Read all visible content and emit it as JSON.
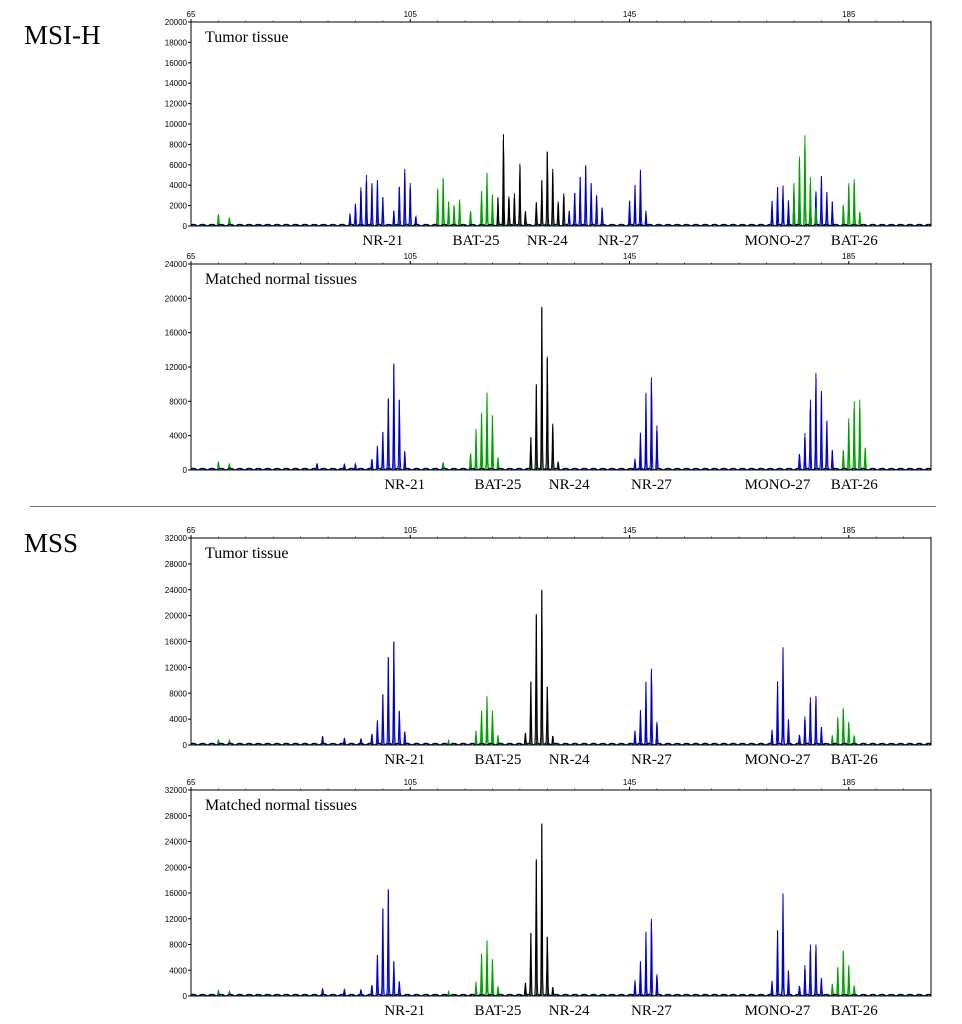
{
  "sections": [
    {
      "label": "MSI-H"
    },
    {
      "label": "MSS"
    }
  ],
  "colors": {
    "blue": "#0000cc",
    "green": "#00a000",
    "black": "#000000"
  },
  "chart_data": [
    {
      "type": "line",
      "title": "Tumor tissue",
      "section": "MSI-H",
      "x_ticks": [
        65,
        105,
        145,
        185
      ],
      "xlim": [
        65,
        200
      ],
      "ylim": [
        0,
        20000
      ],
      "y_ticks": [
        0,
        2000,
        4000,
        6000,
        8000,
        10000,
        12000,
        14000,
        16000,
        18000,
        20000
      ],
      "markers": [
        {
          "label": "NR-21",
          "size": 100
        },
        {
          "label": "BAT-25",
          "size": 117
        },
        {
          "label": "NR-24",
          "size": 130
        },
        {
          "label": "NR-27",
          "size": 143
        },
        {
          "label": "MONO-27",
          "size": 172
        },
        {
          "label": "BAT-26",
          "size": 186
        }
      ],
      "series": [
        {
          "color": "blue",
          "peaks": [
            [
              94,
              1200
            ],
            [
              95,
              2200
            ],
            [
              96,
              3800
            ],
            [
              97,
              5000
            ],
            [
              98,
              4200
            ],
            [
              99,
              4500
            ],
            [
              100,
              2800
            ],
            [
              102,
              1500
            ],
            [
              103,
              3800
            ],
            [
              104,
              5600
            ],
            [
              105,
              4200
            ],
            [
              106,
              900
            ],
            [
              134,
              1500
            ],
            [
              135,
              3200
            ],
            [
              136,
              4800
            ],
            [
              137,
              5800
            ],
            [
              138,
              4200
            ],
            [
              139,
              3000
            ],
            [
              140,
              1800
            ],
            [
              145,
              2400
            ],
            [
              146,
              4000
            ],
            [
              147,
              5400
            ],
            [
              148,
              1500
            ],
            [
              171,
              2400
            ],
            [
              172,
              3800
            ],
            [
              173,
              3900
            ],
            [
              174,
              2400
            ],
            [
              175,
              3500
            ],
            [
              176,
              4800
            ],
            [
              178,
              2200
            ],
            [
              179,
              3400
            ],
            [
              180,
              4900
            ],
            [
              181,
              3200
            ],
            [
              182,
              2400
            ]
          ]
        },
        {
          "color": "green",
          "peaks": [
            [
              70,
              1100
            ],
            [
              72,
              700
            ],
            [
              110,
              3600
            ],
            [
              111,
              4600
            ],
            [
              112,
              2400
            ],
            [
              113,
              2000
            ],
            [
              114,
              2600
            ],
            [
              116,
              1400
            ],
            [
              118,
              3300
            ],
            [
              119,
              5200
            ],
            [
              120,
              3000
            ],
            [
              122,
              1700
            ],
            [
              175,
              4200
            ],
            [
              176,
              6800
            ],
            [
              177,
              8900
            ],
            [
              178,
              4800
            ],
            [
              179,
              1800
            ],
            [
              184,
              2000
            ],
            [
              185,
              4200
            ],
            [
              186,
              4600
            ],
            [
              187,
              1400
            ]
          ]
        },
        {
          "color": "black",
          "peaks": [
            [
              121,
              2800
            ],
            [
              122,
              9000
            ],
            [
              123,
              2900
            ],
            [
              124,
              3200
            ],
            [
              125,
              6100
            ],
            [
              126,
              1400
            ],
            [
              128,
              2200
            ],
            [
              129,
              4500
            ],
            [
              130,
              7300
            ],
            [
              131,
              5600
            ],
            [
              132,
              2400
            ],
            [
              133,
              3200
            ]
          ]
        }
      ]
    },
    {
      "type": "line",
      "title": "Matched normal tissues",
      "section": "MSI-H",
      "x_ticks": [
        65,
        105,
        145,
        185
      ],
      "xlim": [
        65,
        200
      ],
      "ylim": [
        0,
        24000
      ],
      "y_ticks": [
        0,
        4000,
        8000,
        12000,
        16000,
        20000,
        24000
      ],
      "markers": [
        {
          "label": "NR-21",
          "size": 104
        },
        {
          "label": "BAT-25",
          "size": 121
        },
        {
          "label": "NR-24",
          "size": 134
        },
        {
          "label": "NR-27",
          "size": 149
        },
        {
          "label": "MONO-27",
          "size": 172
        },
        {
          "label": "BAT-26",
          "size": 186
        }
      ],
      "series": [
        {
          "color": "blue",
          "peaks": [
            [
              88,
              700
            ],
            [
              93,
              600
            ],
            [
              95,
              700
            ],
            [
              98,
              1200
            ],
            [
              99,
              2800
            ],
            [
              100,
              4400
            ],
            [
              101,
              8200
            ],
            [
              102,
              12400
            ],
            [
              103,
              8200
            ],
            [
              104,
              2200
            ],
            [
              111,
              800
            ],
            [
              146,
              1300
            ],
            [
              147,
              4200
            ],
            [
              148,
              9000
            ],
            [
              149,
              10800
            ],
            [
              150,
              5200
            ],
            [
              176,
              1800
            ],
            [
              177,
              4300
            ],
            [
              178,
              8200
            ],
            [
              179,
              11300
            ],
            [
              180,
              9200
            ],
            [
              181,
              5600
            ],
            [
              182,
              2300
            ]
          ]
        },
        {
          "color": "green",
          "peaks": [
            [
              70,
              900
            ],
            [
              72,
              600
            ],
            [
              111,
              700
            ],
            [
              116,
              1900
            ],
            [
              117,
              4800
            ],
            [
              118,
              6500
            ],
            [
              119,
              9000
            ],
            [
              120,
              6300
            ],
            [
              121,
              1400
            ],
            [
              184,
              2200
            ],
            [
              185,
              6000
            ],
            [
              186,
              8000
            ],
            [
              187,
              8200
            ],
            [
              188,
              2600
            ]
          ]
        },
        {
          "color": "black",
          "peaks": [
            [
              127,
              3800
            ],
            [
              128,
              9800
            ],
            [
              129,
              19000
            ],
            [
              130,
              13200
            ],
            [
              131,
              5400
            ],
            [
              132,
              900
            ]
          ]
        }
      ]
    },
    {
      "type": "line",
      "title": "Tumor tissue",
      "section": "MSS",
      "x_ticks": [
        65,
        105,
        145,
        185
      ],
      "xlim": [
        65,
        200
      ],
      "ylim": [
        0,
        32000
      ],
      "y_ticks": [
        0,
        4000,
        8000,
        12000,
        16000,
        20000,
        24000,
        28000,
        32000
      ],
      "markers": [
        {
          "label": "NR-21",
          "size": 104
        },
        {
          "label": "BAT-25",
          "size": 121
        },
        {
          "label": "NR-24",
          "size": 134
        },
        {
          "label": "NR-27",
          "size": 149
        },
        {
          "label": "MONO-27",
          "size": 172
        },
        {
          "label": "BAT-26",
          "size": 186
        }
      ],
      "series": [
        {
          "color": "blue",
          "peaks": [
            [
              89,
              1300
            ],
            [
              93,
              900
            ],
            [
              96,
              800
            ],
            [
              98,
              1600
            ],
            [
              99,
              3800
            ],
            [
              100,
              7800
            ],
            [
              101,
              13400
            ],
            [
              102,
              16000
            ],
            [
              103,
              5200
            ],
            [
              104,
              2100
            ],
            [
              146,
              2200
            ],
            [
              147,
              5200
            ],
            [
              148,
              9800
            ],
            [
              149,
              11800
            ],
            [
              150,
              3600
            ],
            [
              171,
              2200
            ],
            [
              172,
              9800
            ],
            [
              173,
              15000
            ],
            [
              174,
              3800
            ],
            [
              176,
              1400
            ],
            [
              177,
              4400
            ],
            [
              178,
              7400
            ],
            [
              179,
              7600
            ],
            [
              180,
              2800
            ]
          ]
        },
        {
          "color": "green",
          "peaks": [
            [
              70,
              700
            ],
            [
              72,
              500
            ],
            [
              112,
              700
            ],
            [
              117,
              2200
            ],
            [
              118,
              5100
            ],
            [
              119,
              7500
            ],
            [
              120,
              5200
            ],
            [
              121,
              1400
            ],
            [
              182,
              1400
            ],
            [
              183,
              4200
            ],
            [
              184,
              5600
            ],
            [
              185,
              3600
            ],
            [
              186,
              1300
            ]
          ]
        },
        {
          "color": "black",
          "peaks": [
            [
              126,
              1800
            ],
            [
              127,
              9800
            ],
            [
              128,
              20000
            ],
            [
              129,
              24000
            ],
            [
              130,
              9000
            ],
            [
              131,
              1400
            ]
          ]
        }
      ]
    },
    {
      "type": "line",
      "title": "Matched normal tissues",
      "section": "MSS",
      "x_ticks": [
        65,
        105,
        145,
        185
      ],
      "xlim": [
        65,
        200
      ],
      "ylim": [
        0,
        32000
      ],
      "y_ticks": [
        0,
        4000,
        8000,
        12000,
        16000,
        20000,
        24000,
        28000,
        32000
      ],
      "markers": [
        {
          "label": "NR-21",
          "size": 104
        },
        {
          "label": "BAT-25",
          "size": 121
        },
        {
          "label": "NR-24",
          "size": 134
        },
        {
          "label": "NR-27",
          "size": 149
        },
        {
          "label": "MONO-27",
          "size": 172
        },
        {
          "label": "BAT-26",
          "size": 186
        }
      ],
      "series": [
        {
          "color": "blue",
          "peaks": [
            [
              89,
              1100
            ],
            [
              93,
              900
            ],
            [
              96,
              800
            ],
            [
              98,
              1600
            ],
            [
              99,
              6400
            ],
            [
              100,
              13600
            ],
            [
              101,
              16400
            ],
            [
              102,
              5400
            ],
            [
              103,
              2100
            ],
            [
              146,
              2400
            ],
            [
              147,
              5200
            ],
            [
              148,
              10000
            ],
            [
              149,
              12000
            ],
            [
              150,
              3400
            ],
            [
              171,
              2200
            ],
            [
              172,
              10200
            ],
            [
              173,
              15800
            ],
            [
              174,
              3800
            ],
            [
              176,
              1400
            ],
            [
              177,
              4800
            ],
            [
              178,
              8000
            ],
            [
              179,
              8000
            ],
            [
              180,
              2800
            ]
          ]
        },
        {
          "color": "green",
          "peaks": [
            [
              70,
              800
            ],
            [
              72,
              500
            ],
            [
              112,
              700
            ],
            [
              117,
              2200
            ],
            [
              118,
              6400
            ],
            [
              119,
              8600
            ],
            [
              120,
              5600
            ],
            [
              121,
              1400
            ],
            [
              182,
              1800
            ],
            [
              183,
              4400
            ],
            [
              184,
              7000
            ],
            [
              185,
              4800
            ],
            [
              186,
              1400
            ]
          ]
        },
        {
          "color": "black",
          "peaks": [
            [
              126,
              2000
            ],
            [
              127,
              9800
            ],
            [
              128,
              21000
            ],
            [
              129,
              26800
            ],
            [
              130,
              9200
            ],
            [
              131,
              1400
            ]
          ]
        }
      ]
    }
  ]
}
